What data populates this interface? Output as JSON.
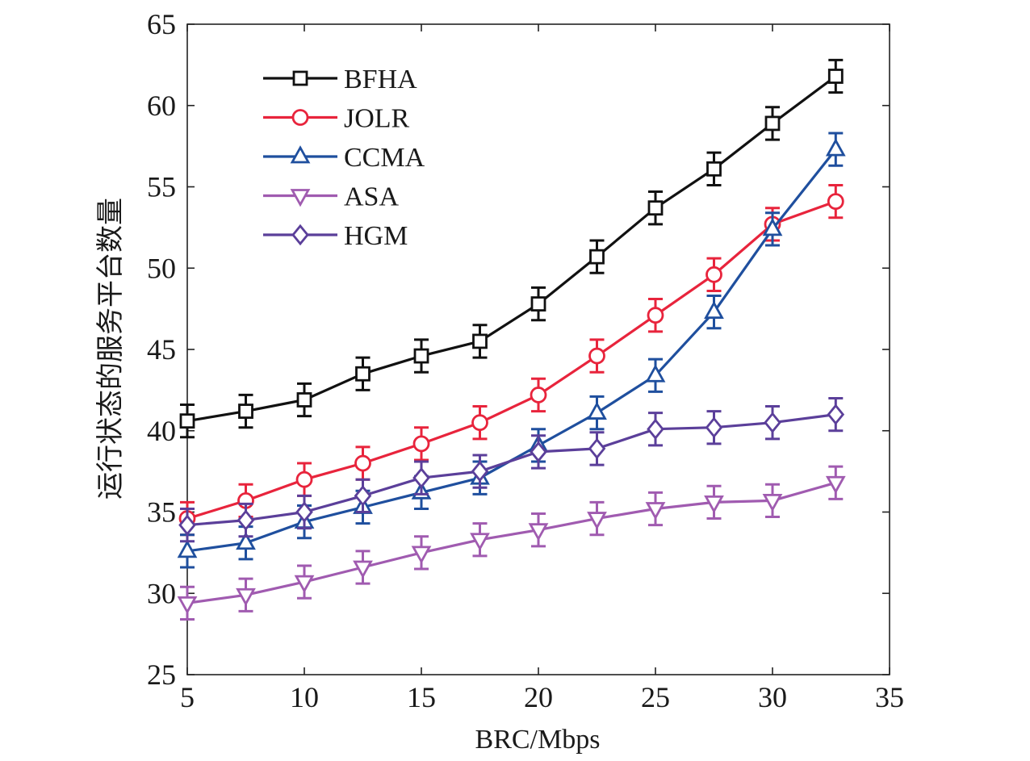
{
  "chart_data": {
    "type": "line",
    "title": "",
    "xlabel": "BRC/Mbps",
    "ylabel": "运行状态的服务平台数量",
    "xlim": [
      5,
      35
    ],
    "ylim": [
      25,
      65
    ],
    "xticks": [
      5,
      10,
      15,
      20,
      25,
      30,
      35
    ],
    "yticks": [
      25,
      30,
      35,
      40,
      45,
      50,
      55,
      60,
      65
    ],
    "x": [
      5,
      7.5,
      10,
      12.5,
      15,
      17.5,
      20,
      22.5,
      25,
      27.5,
      30,
      32.7
    ],
    "grid": false,
    "legend_position": "top-left",
    "error_bar_halfwidth": 1.0,
    "series": [
      {
        "name": "BFHA",
        "color": "#111111",
        "marker": "square",
        "values": [
          40.6,
          41.2,
          41.9,
          43.5,
          44.6,
          45.5,
          47.8,
          50.7,
          53.7,
          56.1,
          58.9,
          61.8
        ]
      },
      {
        "name": "JOLR",
        "color": "#e8243c",
        "marker": "circle",
        "values": [
          34.6,
          35.7,
          37.0,
          38.0,
          39.2,
          40.5,
          42.2,
          44.6,
          47.1,
          49.6,
          52.7,
          54.1
        ]
      },
      {
        "name": "CCMA",
        "color": "#1f4f9e",
        "marker": "triangle-up",
        "values": [
          32.6,
          33.1,
          34.4,
          35.3,
          36.2,
          37.1,
          39.1,
          41.1,
          43.4,
          47.3,
          52.4,
          57.3
        ]
      },
      {
        "name": "ASA",
        "color": "#a05bb0",
        "marker": "triangle-down",
        "values": [
          29.4,
          29.9,
          30.7,
          31.6,
          32.5,
          33.3,
          33.9,
          34.6,
          35.2,
          35.6,
          35.7,
          36.8
        ]
      },
      {
        "name": "HGM",
        "color": "#5b3f9a",
        "marker": "diamond",
        "values": [
          34.2,
          34.5,
          35.0,
          36.0,
          37.1,
          37.5,
          38.7,
          38.9,
          40.1,
          40.2,
          40.5,
          41.0
        ]
      }
    ]
  }
}
